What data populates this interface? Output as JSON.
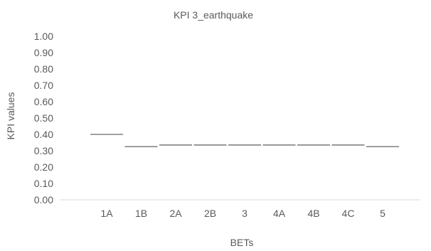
{
  "chart_data": {
    "type": "bar",
    "title": "KPI 3_earthquake",
    "xlabel": "BETs",
    "ylabel": "KPI values",
    "categories": [
      "1A",
      "1B",
      "2A",
      "2B",
      "3",
      "4A",
      "4B",
      "4C",
      "5"
    ],
    "series": [
      {
        "values": [
          0.4,
          0.325,
          0.335,
          0.335,
          0.335,
          0.335,
          0.335,
          0.335,
          0.325
        ]
      }
    ],
    "ylim": [
      0,
      1
    ],
    "yticks": [
      "0.00",
      "0.10",
      "0.20",
      "0.30",
      "0.40",
      "0.50",
      "0.60",
      "0.70",
      "0.80",
      "0.90",
      "1.00"
    ],
    "grid": false,
    "legend": "none",
    "colors": {
      "mark": "#808080",
      "axis": "#d9d9d9",
      "text": "#595959"
    }
  }
}
